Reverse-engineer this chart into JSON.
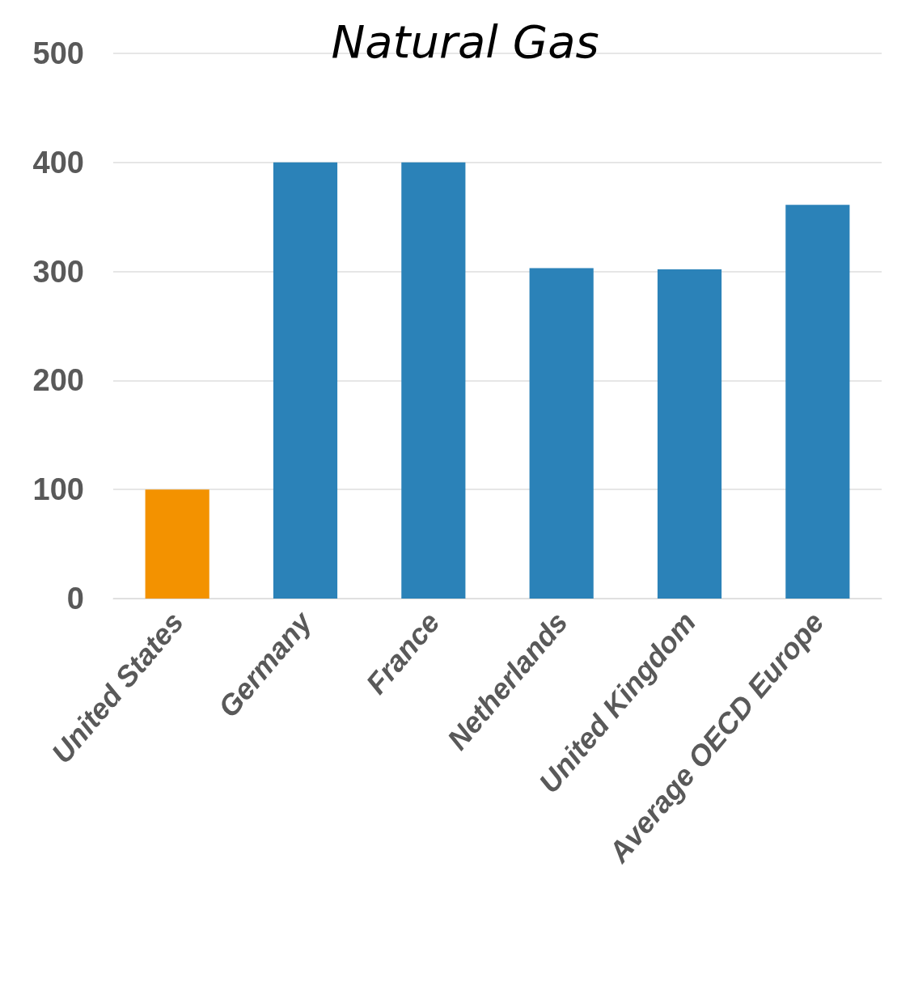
{
  "chart_data": {
    "type": "bar",
    "title": "Natural Gas",
    "categories": [
      "United States",
      "Germany",
      "France",
      "Netherlands",
      "United Kingdom",
      "Average OECD Europe"
    ],
    "values": [
      100,
      400,
      400,
      303,
      302,
      361
    ],
    "colors": [
      "#f39200",
      "#2b82b8",
      "#2b82b8",
      "#2b82b8",
      "#2b82b8",
      "#2b82b8"
    ],
    "ylim": [
      0,
      500
    ],
    "yticks": [
      0,
      100,
      200,
      300,
      400,
      500
    ],
    "grid": "y"
  }
}
